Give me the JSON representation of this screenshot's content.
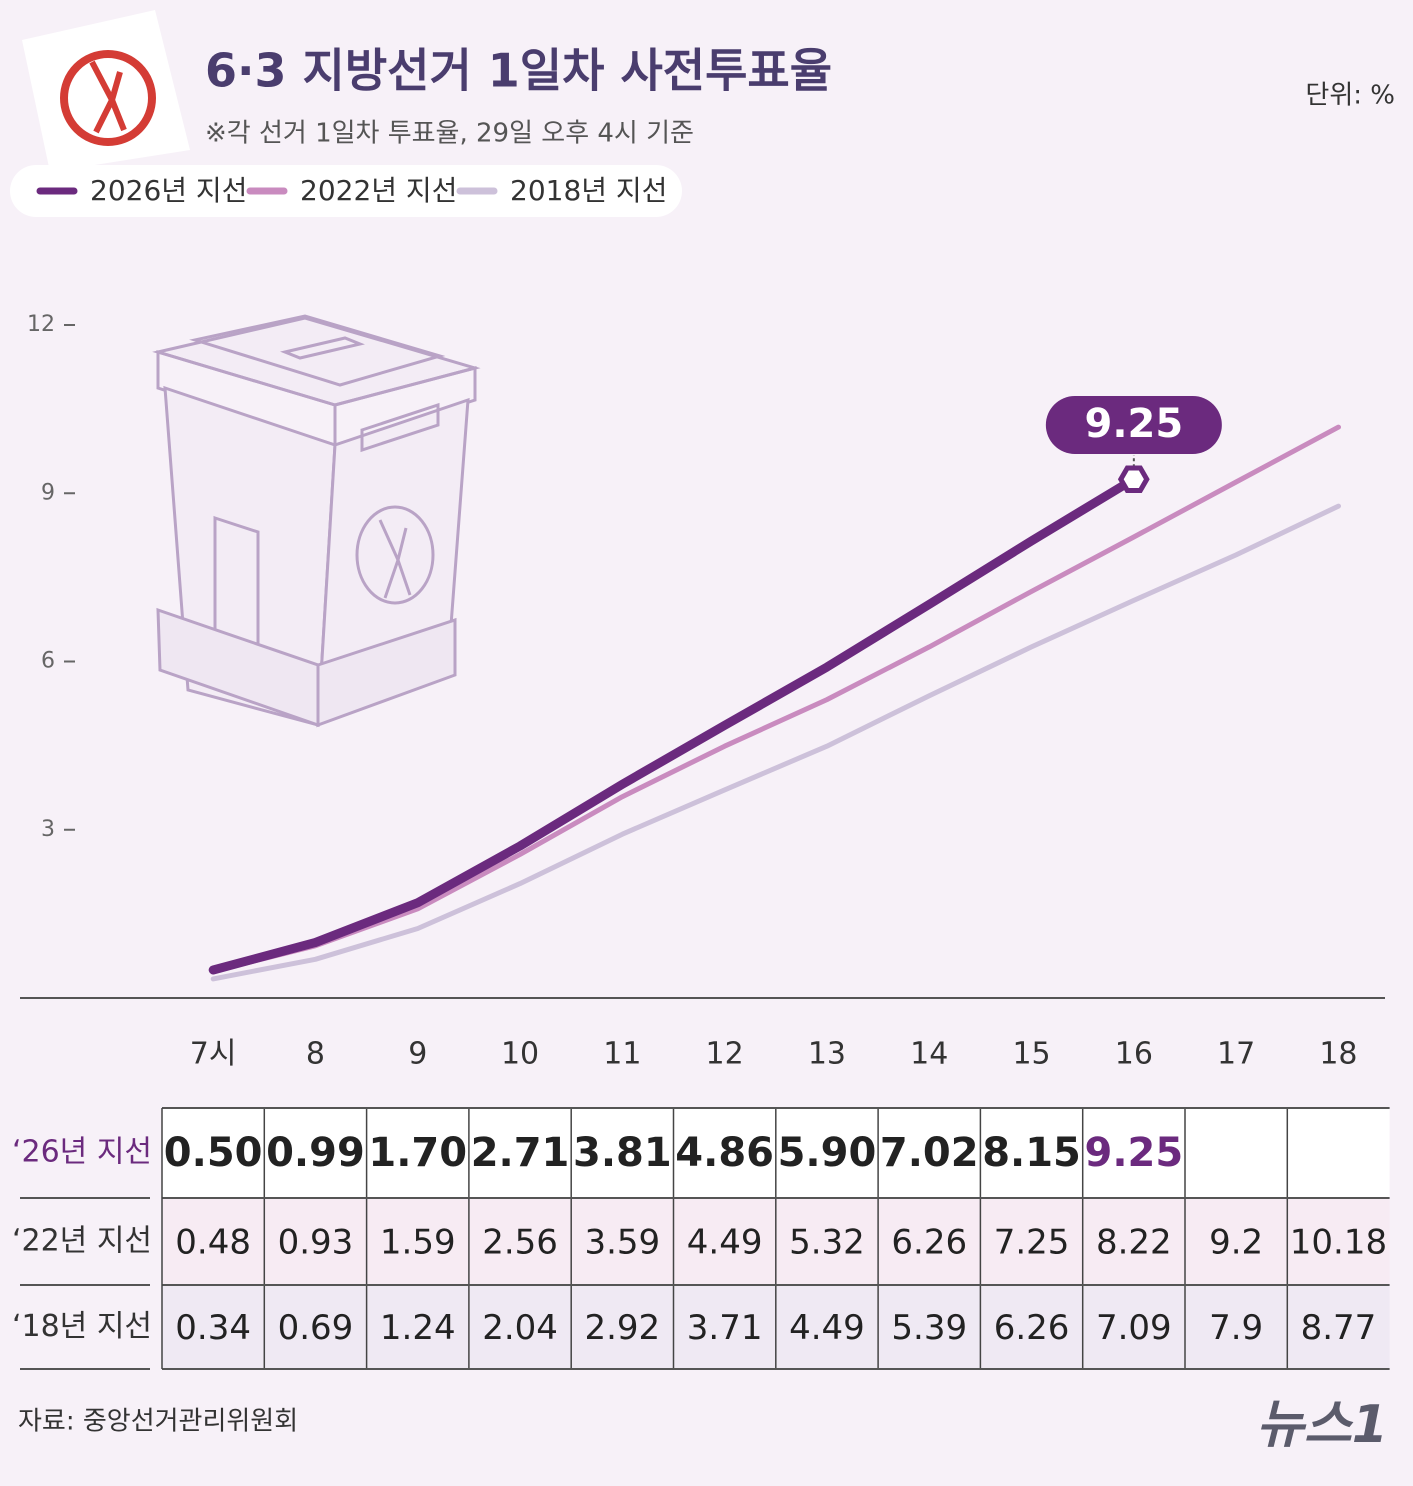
{
  "chart_data": {
    "type": "line",
    "title": "6·3 지방선거 1일차 사전투표율",
    "subtitle": "※각 선거 1일차 투표율, 29일 오후 4시 기준",
    "unit": "단위: %",
    "categories": [
      "7시",
      "8",
      "9",
      "10",
      "11",
      "12",
      "13",
      "14",
      "15",
      "16",
      "17",
      "18"
    ],
    "series": [
      {
        "name": "2026년 지선",
        "row_label": "‘26년 지선",
        "color": "#6b2a7e",
        "values": [
          0.5,
          0.99,
          1.7,
          2.71,
          3.81,
          4.86,
          5.9,
          7.02,
          8.15,
          9.25,
          null,
          null
        ],
        "value_labels": [
          "0.50",
          "0.99",
          "1.70",
          "2.71",
          "3.81",
          "4.86",
          "5.90",
          "7.02",
          "8.15",
          "9.25",
          null,
          null
        ]
      },
      {
        "name": "2022년 지선",
        "row_label": "‘22년 지선",
        "color": "#c98bbf",
        "values": [
          0.48,
          0.93,
          1.59,
          2.56,
          3.59,
          4.49,
          5.32,
          6.26,
          7.25,
          8.22,
          9.2,
          10.18
        ]
      },
      {
        "name": "2018년 지선",
        "row_label": "‘18년 지선",
        "color": "#cdc1da",
        "values": [
          0.34,
          0.69,
          1.24,
          2.04,
          2.92,
          3.71,
          4.49,
          5.39,
          6.26,
          7.09,
          7.9,
          8.77
        ]
      }
    ],
    "ylim": [
      0,
      12
    ],
    "yticks": [
      3,
      6,
      9,
      12
    ],
    "source": "자료: 중앙선거관리위원회",
    "brand": "뉴스1"
  }
}
